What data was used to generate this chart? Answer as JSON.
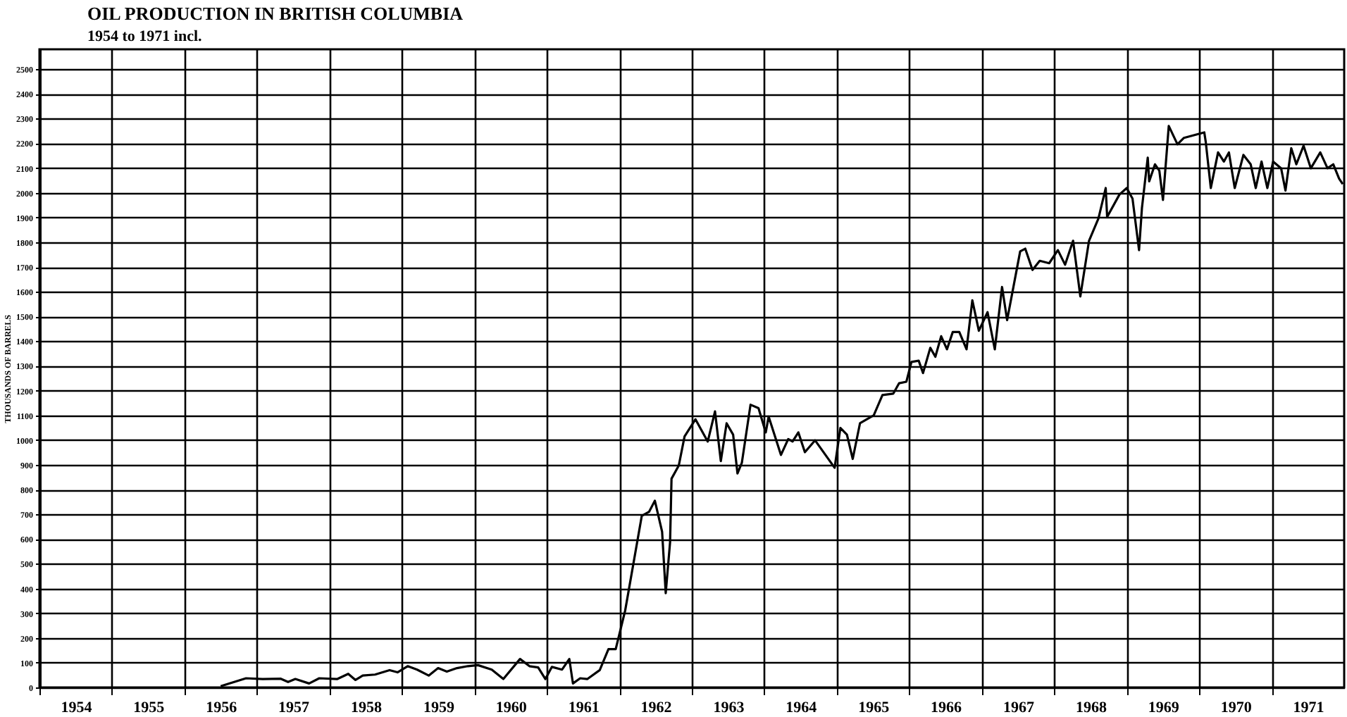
{
  "chart_data": {
    "type": "line",
    "title": "OIL PRODUCTION IN BRITISH COLUMBIA",
    "subtitle": "1954 to 1971 incl.",
    "ylabel": "THOUSANDS OF BARRELS",
    "x": [
      1956.5,
      1956.85,
      1957.08,
      1957.33,
      1957.43,
      1957.53,
      1957.72,
      1957.86,
      1958.11,
      1958.26,
      1958.36,
      1958.46,
      1958.63,
      1958.83,
      1958.94,
      1959.08,
      1959.21,
      1959.37,
      1959.5,
      1959.62,
      1959.76,
      1959.91,
      1960.05,
      1960.24,
      1960.4,
      1960.63,
      1960.76,
      1960.88,
      1960.98,
      1961.07,
      1961.21,
      1961.31,
      1961.36,
      1961.46,
      1961.56,
      1961.73,
      1961.85,
      1961.95,
      1962.08,
      1962.31,
      1962.41,
      1962.49,
      1962.59,
      1962.64,
      1962.7,
      1962.72,
      1962.82,
      1962.9,
      1963.05,
      1963.22,
      1963.32,
      1963.4,
      1963.48,
      1963.57,
      1963.63,
      1963.69,
      1963.81,
      1963.92,
      1964.02,
      1964.06,
      1964.23,
      1964.33,
      1964.39,
      1964.47,
      1964.56,
      1964.7,
      1964.97,
      1965.05,
      1965.14,
      1965.22,
      1965.32,
      1965.51,
      1965.63,
      1965.78,
      1965.86,
      1965.96,
      1966.03,
      1966.13,
      1966.19,
      1966.29,
      1966.36,
      1966.44,
      1966.52,
      1966.6,
      1966.69,
      1966.79,
      1966.87,
      1966.96,
      1967.08,
      1967.18,
      1967.28,
      1967.35,
      1967.53,
      1967.6,
      1967.7,
      1967.8,
      1967.93,
      1968.05,
      1968.15,
      1968.26,
      1968.36,
      1968.48,
      1968.61,
      1968.71,
      1968.73,
      1968.9,
      1969.0,
      1969.08,
      1969.17,
      1969.21,
      1969.29,
      1969.31,
      1969.39,
      1969.45,
      1969.5,
      1969.58,
      1969.7,
      1969.79,
      1970.07,
      1970.09,
      1970.16,
      1970.26,
      1970.34,
      1970.41,
      1970.49,
      1970.61,
      1970.71,
      1970.78,
      1970.86,
      1970.94,
      1971.02,
      1971.13,
      1971.19,
      1971.27,
      1971.34,
      1971.44,
      1971.54,
      1971.67,
      1971.77,
      1971.85,
      1971.93,
      1971.98
    ],
    "series": [
      {
        "color": "#000000",
        "values": [
          5,
          37,
          34,
          35,
          22,
          34,
          16,
          37,
          34,
          55,
          30,
          48,
          52,
          70,
          61,
          86,
          72,
          48,
          78,
          64,
          78,
          86,
          90,
          72,
          34,
          115,
          86,
          81,
          34,
          83,
          72,
          115,
          16,
          37,
          34,
          70,
          155,
          155,
          310,
          694,
          710,
          755,
          630,
          381,
          587,
          844,
          897,
          1015,
          1084,
          994,
          1116,
          915,
          1068,
          1022,
          865,
          908,
          1143,
          1129,
          1031,
          1095,
          940,
          1004,
          994,
          1031,
          951,
          999,
          888,
          1049,
          1022,
          924,
          1068,
          1100,
          1182,
          1188,
          1230,
          1236,
          1316,
          1321,
          1271,
          1373,
          1337,
          1420,
          1367,
          1437,
          1437,
          1367,
          1565,
          1442,
          1517,
          1367,
          1619,
          1485,
          1763,
          1774,
          1688,
          1725,
          1715,
          1768,
          1709,
          1806,
          1581,
          1806,
          1896,
          2019,
          1902,
          1993,
          2019,
          1976,
          1768,
          1939,
          2142,
          2046,
          2115,
          2089,
          1971,
          2270,
          2196,
          2222,
          2244,
          2206,
          2019,
          2163,
          2126,
          2163,
          2019,
          2153,
          2115,
          2019,
          2126,
          2019,
          2126,
          2099,
          2009,
          2180,
          2115,
          2190,
          2099,
          2163,
          2099,
          2115,
          2057,
          2035
        ]
      }
    ],
    "xlim": [
      1954,
      1972
    ],
    "ylim": [
      0,
      2580
    ],
    "xticks": [
      {
        "value": 1954,
        "label": null
      },
      {
        "value": 1954.5,
        "label": "1954"
      },
      {
        "value": 1955,
        "label": null
      },
      {
        "value": 1955.5,
        "label": "1955"
      },
      {
        "value": 1956,
        "label": null
      },
      {
        "value": 1956.5,
        "label": "1956"
      },
      {
        "value": 1957,
        "label": null
      },
      {
        "value": 1957.5,
        "label": "1957"
      },
      {
        "value": 1958,
        "label": null
      },
      {
        "value": 1958.5,
        "label": "1958"
      },
      {
        "value": 1959,
        "label": null
      },
      {
        "value": 1959.5,
        "label": "1959"
      },
      {
        "value": 1960,
        "label": null
      },
      {
        "value": 1960.5,
        "label": "1960"
      },
      {
        "value": 1961,
        "label": null
      },
      {
        "value": 1961.5,
        "label": "1961"
      },
      {
        "value": 1962,
        "label": null
      },
      {
        "value": 1962.5,
        "label": "1962"
      },
      {
        "value": 1963,
        "label": null
      },
      {
        "value": 1963.5,
        "label": "1963"
      },
      {
        "value": 1964,
        "label": null
      },
      {
        "value": 1964.5,
        "label": "1964"
      },
      {
        "value": 1965,
        "label": null
      },
      {
        "value": 1965.5,
        "label": "1965"
      },
      {
        "value": 1966,
        "label": null
      },
      {
        "value": 1966.5,
        "label": "1966"
      },
      {
        "value": 1967,
        "label": null
      },
      {
        "value": 1967.5,
        "label": "1967"
      },
      {
        "value": 1968,
        "label": null
      },
      {
        "value": 1968.5,
        "label": "1968"
      },
      {
        "value": 1969,
        "label": null
      },
      {
        "value": 1969.5,
        "label": "1969"
      },
      {
        "value": 1970,
        "label": null
      },
      {
        "value": 1970.5,
        "label": "1970"
      },
      {
        "value": 1971,
        "label": null
      },
      {
        "value": 1971.5,
        "label": "1971"
      }
    ],
    "yticks": [
      0,
      100,
      200,
      300,
      400,
      500,
      600,
      700,
      800,
      900,
      1000,
      1100,
      1200,
      1300,
      1400,
      1500,
      1600,
      1700,
      1800,
      1900,
      2000,
      2100,
      2200,
      2300,
      2400,
      2500
    ],
    "grid": true
  }
}
